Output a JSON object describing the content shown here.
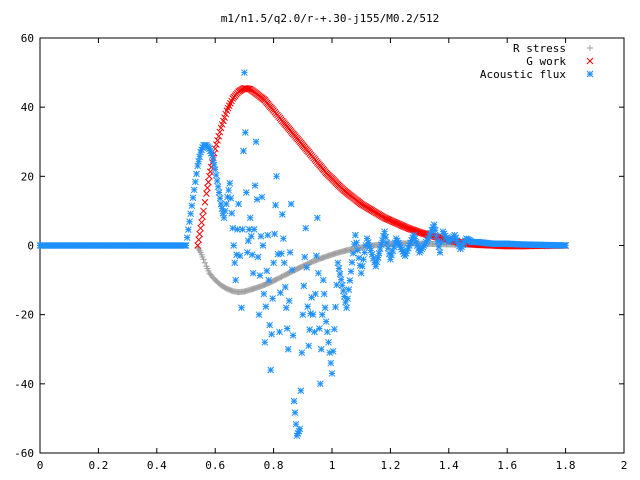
{
  "chart_data": {
    "type": "scatter",
    "title": "m1/n1.5/q2.0/r-+.30-j155/M0.2/512",
    "xlabel": "",
    "ylabel": "",
    "xlim": [
      0,
      2
    ],
    "ylim": [
      -60,
      60
    ],
    "x_ticks": [
      "0",
      "0.2",
      "0.4",
      "0.6",
      "0.8",
      "1",
      "1.2",
      "1.4",
      "1.6",
      "1.8",
      "2"
    ],
    "y_ticks": [
      "60",
      "40",
      "20",
      "0",
      "-20",
      "-40",
      "-60"
    ],
    "grid": false,
    "legend_position": "top-right",
    "series": [
      {
        "name": "R stress",
        "marker": "+",
        "color": "#a0a0a0",
        "points": [
          [
            0.54,
            -0.5
          ],
          [
            0.55,
            -2
          ],
          [
            0.56,
            -4
          ],
          [
            0.57,
            -6
          ],
          [
            0.58,
            -8
          ],
          [
            0.6,
            -10
          ],
          [
            0.62,
            -11.5
          ],
          [
            0.64,
            -12.5
          ],
          [
            0.66,
            -13.2
          ],
          [
            0.68,
            -13.5
          ],
          [
            0.7,
            -13.3
          ],
          [
            0.72,
            -12.8
          ],
          [
            0.75,
            -12
          ],
          [
            0.78,
            -11
          ],
          [
            0.81,
            -9.8
          ],
          [
            0.84,
            -8.5
          ],
          [
            0.87,
            -7.2
          ],
          [
            0.9,
            -6
          ],
          [
            0.93,
            -4.8
          ],
          [
            0.96,
            -3.8
          ],
          [
            0.99,
            -2.9
          ],
          [
            1.02,
            -2.1
          ],
          [
            1.05,
            -1.4
          ],
          [
            1.08,
            -0.9
          ],
          [
            1.11,
            -0.4
          ],
          [
            1.14,
            0
          ],
          [
            1.17,
            0.3
          ],
          [
            1.2,
            0.5
          ],
          [
            1.24,
            0.6
          ],
          [
            1.28,
            0.6
          ],
          [
            1.32,
            0.5
          ],
          [
            1.36,
            0.4
          ],
          [
            1.4,
            0.3
          ],
          [
            1.45,
            0.2
          ],
          [
            1.5,
            0.1
          ],
          [
            1.6,
            0.05
          ],
          [
            1.7,
            0.02
          ],
          [
            1.8,
            0
          ]
        ]
      },
      {
        "name": "G work",
        "marker": "x",
        "color": "#ff0000",
        "points": [
          [
            0.54,
            0
          ],
          [
            0.55,
            5
          ],
          [
            0.56,
            10
          ],
          [
            0.57,
            15
          ],
          [
            0.58,
            20
          ],
          [
            0.59,
            24
          ],
          [
            0.6,
            28
          ],
          [
            0.62,
            34
          ],
          [
            0.64,
            39
          ],
          [
            0.66,
            42.5
          ],
          [
            0.68,
            44.5
          ],
          [
            0.7,
            45.5
          ],
          [
            0.72,
            45.2
          ],
          [
            0.74,
            44
          ],
          [
            0.77,
            42
          ],
          [
            0.8,
            39
          ],
          [
            0.83,
            36
          ],
          [
            0.86,
            33
          ],
          [
            0.89,
            30
          ],
          [
            0.92,
            27
          ],
          [
            0.95,
            24
          ],
          [
            0.98,
            21
          ],
          [
            1.01,
            18.5
          ],
          [
            1.04,
            16
          ],
          [
            1.07,
            14
          ],
          [
            1.1,
            12
          ],
          [
            1.14,
            10
          ],
          [
            1.18,
            8
          ],
          [
            1.22,
            6.5
          ],
          [
            1.26,
            5
          ],
          [
            1.3,
            3.8
          ],
          [
            1.34,
            2.8
          ],
          [
            1.38,
            2
          ],
          [
            1.42,
            1.2
          ],
          [
            1.46,
            0.6
          ],
          [
            1.5,
            0.2
          ],
          [
            1.55,
            0
          ],
          [
            1.6,
            -0.2
          ],
          [
            1.65,
            -0.2
          ],
          [
            1.7,
            -0.1
          ],
          [
            1.8,
            0
          ]
        ]
      },
      {
        "name": "Acoustic flux",
        "marker": "*",
        "color": "#1e90ff",
        "points": [
          [
            0,
            0
          ],
          [
            0.1,
            0
          ],
          [
            0.2,
            0
          ],
          [
            0.3,
            0
          ],
          [
            0.4,
            0
          ],
          [
            0.5,
            0
          ],
          [
            0.54,
            23
          ],
          [
            0.55,
            27
          ],
          [
            0.56,
            29
          ],
          [
            0.57,
            29
          ],
          [
            0.58,
            28
          ],
          [
            0.59,
            26
          ],
          [
            0.6,
            22
          ],
          [
            0.61,
            17
          ],
          [
            0.62,
            12
          ],
          [
            0.63,
            8
          ],
          [
            0.65,
            18
          ],
          [
            0.66,
            5
          ],
          [
            0.67,
            -10
          ],
          [
            0.68,
            12
          ],
          [
            0.69,
            -18
          ],
          [
            0.7,
            50
          ],
          [
            0.71,
            -2
          ],
          [
            0.72,
            8
          ],
          [
            0.73,
            -8
          ],
          [
            0.74,
            30
          ],
          [
            0.75,
            -20
          ],
          [
            0.76,
            14
          ],
          [
            0.77,
            -28
          ],
          [
            0.78,
            3
          ],
          [
            0.79,
            -36
          ],
          [
            0.8,
            -5
          ],
          [
            0.81,
            20
          ],
          [
            0.82,
            -25
          ],
          [
            0.83,
            9
          ],
          [
            0.84,
            -12
          ],
          [
            0.85,
            -30
          ],
          [
            0.86,
            12
          ],
          [
            0.87,
            -45
          ],
          [
            0.88,
            -55
          ],
          [
            0.89,
            -53
          ],
          [
            0.9,
            -20
          ],
          [
            0.91,
            5
          ],
          [
            0.92,
            -29
          ],
          [
            0.93,
            -15
          ],
          [
            0.94,
            -25
          ],
          [
            0.95,
            8
          ],
          [
            0.96,
            -40
          ],
          [
            0.97,
            -10
          ],
          [
            0.98,
            -22
          ],
          [
            1.0,
            -37
          ],
          [
            1.02,
            -5
          ],
          [
            1.05,
            -18
          ],
          [
            1.08,
            3
          ],
          [
            1.1,
            -8
          ],
          [
            1.12,
            2
          ],
          [
            1.15,
            -6
          ],
          [
            1.18,
            4
          ],
          [
            1.2,
            -4
          ],
          [
            1.22,
            2
          ],
          [
            1.25,
            -3
          ],
          [
            1.28,
            3
          ],
          [
            1.3,
            -2
          ],
          [
            1.33,
            2
          ],
          [
            1.35,
            6
          ],
          [
            1.37,
            -2
          ],
          [
            1.38,
            4
          ],
          [
            1.4,
            1
          ],
          [
            1.42,
            3
          ],
          [
            1.44,
            -1
          ],
          [
            1.46,
            2
          ],
          [
            1.48,
            1
          ],
          [
            1.5,
            1
          ],
          [
            1.55,
            0.5
          ],
          [
            1.6,
            0.5
          ],
          [
            1.65,
            0.3
          ],
          [
            1.7,
            0.2
          ],
          [
            1.75,
            0.1
          ],
          [
            1.8,
            0
          ]
        ]
      }
    ]
  }
}
